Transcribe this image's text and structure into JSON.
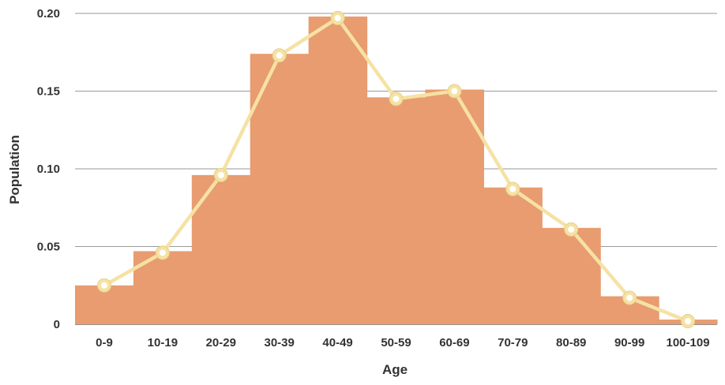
{
  "chart_data": {
    "type": "bar",
    "title": "",
    "xlabel": "Age",
    "ylabel": "Population",
    "categories": [
      "0-9",
      "10-19",
      "20-29",
      "30-39",
      "40-49",
      "50-59",
      "60-69",
      "70-79",
      "80-89",
      "90-99",
      "100-109"
    ],
    "series": [
      {
        "type": "bar",
        "values": [
          0.025,
          0.047,
          0.096,
          0.174,
          0.198,
          0.146,
          0.151,
          0.088,
          0.062,
          0.018,
          0.003
        ],
        "color": "#E89C70"
      },
      {
        "type": "line",
        "values": [
          0.025,
          0.046,
          0.096,
          0.173,
          0.197,
          0.145,
          0.15,
          0.087,
          0.061,
          0.017,
          0.002
        ],
        "color": "#F5E2A4"
      }
    ],
    "ylim": [
      0,
      0.2
    ],
    "yticks": [
      0,
      0.05,
      0.1,
      0.15,
      0.2
    ],
    "ytick_labels": [
      "0",
      "0.05",
      "0.10",
      "0.15",
      "0.20"
    ],
    "grid": true,
    "legend": "none"
  }
}
